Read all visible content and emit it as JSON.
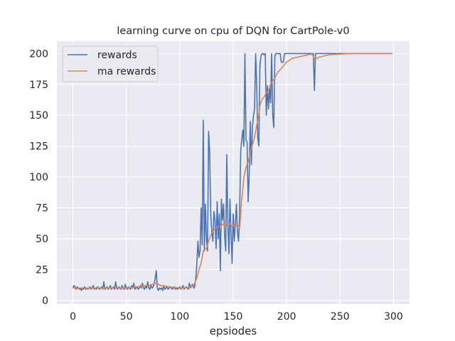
{
  "chart_data": {
    "type": "line",
    "title": "learning curve on cpu of DQN for CartPole-v0",
    "xlabel": "epsiodes",
    "ylabel": "",
    "xlim": [
      -15,
      315
    ],
    "ylim": [
      -3,
      210
    ],
    "xticks": [
      0,
      50,
      100,
      150,
      200,
      250,
      300
    ],
    "yticks": [
      0,
      25,
      50,
      75,
      100,
      125,
      150,
      175,
      200
    ],
    "grid": true,
    "legend": "top-left",
    "background": "#eaeaf2",
    "series": [
      {
        "name": "rewards",
        "color": "#4c72b0",
        "points": [
          [
            0,
            10
          ],
          [
            1,
            12
          ],
          [
            2,
            11
          ],
          [
            3,
            9
          ],
          [
            4,
            11
          ],
          [
            5,
            10
          ],
          [
            6,
            9
          ],
          [
            7,
            10
          ],
          [
            8,
            8
          ],
          [
            9,
            10
          ],
          [
            10,
            9
          ],
          [
            11,
            11
          ],
          [
            12,
            9
          ],
          [
            13,
            10
          ],
          [
            14,
            9
          ],
          [
            15,
            10
          ],
          [
            16,
            11
          ],
          [
            17,
            9
          ],
          [
            18,
            10
          ],
          [
            19,
            12
          ],
          [
            20,
            9
          ],
          [
            21,
            10
          ],
          [
            22,
            9
          ],
          [
            23,
            11
          ],
          [
            24,
            10
          ],
          [
            25,
            9
          ],
          [
            26,
            10
          ],
          [
            27,
            11
          ],
          [
            28,
            9
          ],
          [
            29,
            15
          ],
          [
            30,
            9
          ],
          [
            31,
            10
          ],
          [
            32,
            11
          ],
          [
            33,
            9
          ],
          [
            34,
            10
          ],
          [
            35,
            12
          ],
          [
            36,
            9
          ],
          [
            37,
            10
          ],
          [
            38,
            11
          ],
          [
            39,
            9
          ],
          [
            40,
            15
          ],
          [
            41,
            10
          ],
          [
            42,
            9
          ],
          [
            43,
            11
          ],
          [
            44,
            10
          ],
          [
            45,
            9
          ],
          [
            46,
            12
          ],
          [
            47,
            10
          ],
          [
            48,
            9
          ],
          [
            49,
            13
          ],
          [
            50,
            10
          ],
          [
            51,
            9
          ],
          [
            52,
            11
          ],
          [
            53,
            10
          ],
          [
            54,
            9
          ],
          [
            55,
            12
          ],
          [
            56,
            10
          ],
          [
            57,
            14
          ],
          [
            58,
            9
          ],
          [
            59,
            10
          ],
          [
            60,
            11
          ],
          [
            61,
            9
          ],
          [
            62,
            10
          ],
          [
            63,
            12
          ],
          [
            64,
            10
          ],
          [
            65,
            14
          ],
          [
            66,
            10
          ],
          [
            67,
            9
          ],
          [
            68,
            12
          ],
          [
            69,
            10
          ],
          [
            70,
            15
          ],
          [
            71,
            10
          ],
          [
            72,
            9
          ],
          [
            73,
            12
          ],
          [
            74,
            10
          ],
          [
            75,
            11
          ],
          [
            76,
            13
          ],
          [
            77,
            18
          ],
          [
            78,
            24
          ],
          [
            79,
            10
          ],
          [
            80,
            8
          ],
          [
            81,
            10
          ],
          [
            82,
            9
          ],
          [
            83,
            10
          ],
          [
            84,
            8
          ],
          [
            85,
            12
          ],
          [
            86,
            9
          ],
          [
            87,
            10
          ],
          [
            88,
            11
          ],
          [
            89,
            9
          ],
          [
            90,
            10
          ],
          [
            91,
            11
          ],
          [
            92,
            10
          ],
          [
            93,
            9
          ],
          [
            94,
            10
          ],
          [
            95,
            11
          ],
          [
            96,
            9
          ],
          [
            97,
            10
          ],
          [
            98,
            9
          ],
          [
            99,
            10
          ],
          [
            100,
            11
          ],
          [
            101,
            9
          ],
          [
            102,
            10
          ],
          [
            103,
            12
          ],
          [
            104,
            9
          ],
          [
            105,
            10
          ],
          [
            106,
            11
          ],
          [
            107,
            10
          ],
          [
            108,
            9
          ],
          [
            109,
            14
          ],
          [
            110,
            10
          ],
          [
            111,
            12
          ],
          [
            112,
            13
          ],
          [
            113,
            10
          ],
          [
            114,
            11
          ],
          [
            115,
            18
          ],
          [
            116,
            30
          ],
          [
            117,
            48
          ],
          [
            118,
            35
          ],
          [
            119,
            40
          ],
          [
            120,
            75
          ],
          [
            121,
            45
          ],
          [
            122,
            146
          ],
          [
            123,
            40
          ],
          [
            124,
            78
          ],
          [
            125,
            50
          ],
          [
            126,
            40
          ],
          [
            127,
            137
          ],
          [
            128,
            120
          ],
          [
            129,
            70
          ],
          [
            130,
            55
          ],
          [
            131,
            48
          ],
          [
            132,
            72
          ],
          [
            133,
            65
          ],
          [
            134,
            42
          ],
          [
            135,
            80
          ],
          [
            136,
            50
          ],
          [
            137,
            70
          ],
          [
            138,
            24
          ],
          [
            139,
            82
          ],
          [
            140,
            65
          ],
          [
            141,
            78
          ],
          [
            142,
            52
          ],
          [
            143,
            40
          ],
          [
            144,
            118
          ],
          [
            145,
            62
          ],
          [
            146,
            38
          ],
          [
            147,
            82
          ],
          [
            148,
            52
          ],
          [
            149,
            30
          ],
          [
            150,
            70
          ],
          [
            151,
            48
          ],
          [
            152,
            62
          ],
          [
            153,
            78
          ],
          [
            154,
            55
          ],
          [
            155,
            48
          ],
          [
            156,
            68
          ],
          [
            157,
            120
          ],
          [
            158,
            130
          ],
          [
            159,
            138
          ],
          [
            160,
            125
          ],
          [
            161,
            200
          ],
          [
            162,
            130
          ],
          [
            163,
            128
          ],
          [
            164,
            80
          ],
          [
            165,
            102
          ],
          [
            166,
            145
          ],
          [
            167,
            110
          ],
          [
            168,
            140
          ],
          [
            169,
            150
          ],
          [
            170,
            155
          ],
          [
            171,
            200
          ],
          [
            172,
            175
          ],
          [
            173,
            132
          ],
          [
            174,
            125
          ],
          [
            175,
            190
          ],
          [
            176,
            198
          ],
          [
            177,
            200
          ],
          [
            178,
            200
          ],
          [
            179,
            199
          ],
          [
            180,
            200
          ],
          [
            181,
            150
          ],
          [
            182,
            174
          ],
          [
            183,
            155
          ],
          [
            184,
            172
          ],
          [
            185,
            160
          ],
          [
            186,
            200
          ],
          [
            187,
            150
          ],
          [
            188,
            140
          ],
          [
            189,
            198
          ],
          [
            190,
            200
          ],
          [
            191,
            200
          ],
          [
            192,
            200
          ],
          [
            193,
            200
          ],
          [
            194,
            200
          ],
          [
            195,
            193
          ],
          [
            196,
            193
          ],
          [
            197,
            193
          ],
          [
            198,
            200
          ],
          [
            199,
            200
          ],
          [
            200,
            200
          ],
          [
            201,
            200
          ],
          [
            202,
            200
          ],
          [
            203,
            200
          ],
          [
            204,
            200
          ],
          [
            205,
            200
          ],
          [
            206,
            200
          ],
          [
            207,
            200
          ],
          [
            208,
            200
          ],
          [
            209,
            200
          ],
          [
            210,
            200
          ],
          [
            211,
            200
          ],
          [
            212,
            200
          ],
          [
            213,
            200
          ],
          [
            214,
            200
          ],
          [
            215,
            200
          ],
          [
            216,
            200
          ],
          [
            217,
            200
          ],
          [
            218,
            200
          ],
          [
            219,
            200
          ],
          [
            220,
            200
          ],
          [
            221,
            200
          ],
          [
            222,
            200
          ],
          [
            223,
            200
          ],
          [
            224,
            200
          ],
          [
            225,
            200
          ],
          [
            226,
            170
          ],
          [
            227,
            200
          ],
          [
            228,
            200
          ],
          [
            229,
            200
          ],
          [
            230,
            200
          ],
          [
            240,
            200
          ],
          [
            250,
            200
          ],
          [
            260,
            200
          ],
          [
            270,
            200
          ],
          [
            280,
            200
          ],
          [
            290,
            200
          ],
          [
            299,
            200
          ]
        ]
      },
      {
        "name": "ma rewards",
        "color": "#dd8452",
        "points": [
          [
            0,
            10
          ],
          [
            10,
            10
          ],
          [
            20,
            10
          ],
          [
            30,
            10
          ],
          [
            40,
            10
          ],
          [
            50,
            10
          ],
          [
            55,
            10.5
          ],
          [
            60,
            11
          ],
          [
            65,
            11.5
          ],
          [
            70,
            12
          ],
          [
            75,
            13
          ],
          [
            78,
            14
          ],
          [
            82,
            12
          ],
          [
            90,
            11
          ],
          [
            95,
            10.5
          ],
          [
            100,
            10
          ],
          [
            105,
            10
          ],
          [
            110,
            11
          ],
          [
            113,
            12
          ],
          [
            116,
            18
          ],
          [
            118,
            25
          ],
          [
            120,
            30
          ],
          [
            122,
            40
          ],
          [
            125,
            42
          ],
          [
            127,
            48
          ],
          [
            130,
            55
          ],
          [
            133,
            58
          ],
          [
            136,
            60
          ],
          [
            138,
            59
          ],
          [
            140,
            62
          ],
          [
            143,
            60
          ],
          [
            146,
            63
          ],
          [
            149,
            60
          ],
          [
            152,
            62
          ],
          [
            155,
            60
          ],
          [
            156,
            58
          ],
          [
            157,
            70
          ],
          [
            158,
            82
          ],
          [
            159,
            90
          ],
          [
            160,
            100
          ],
          [
            162,
            108
          ],
          [
            164,
            112
          ],
          [
            166,
            120
          ],
          [
            168,
            126
          ],
          [
            170,
            132
          ],
          [
            172,
            142
          ],
          [
            174,
            150
          ],
          [
            175,
            158
          ],
          [
            177,
            163
          ],
          [
            179,
            165
          ],
          [
            181,
            168
          ],
          [
            183,
            170
          ],
          [
            185,
            175
          ],
          [
            187,
            178
          ],
          [
            189,
            180
          ],
          [
            191,
            184
          ],
          [
            193,
            186
          ],
          [
            195,
            188
          ],
          [
            197,
            190
          ],
          [
            200,
            193
          ],
          [
            205,
            196
          ],
          [
            210,
            197
          ],
          [
            215,
            198
          ],
          [
            220,
            199
          ],
          [
            224,
            199.5
          ],
          [
            226,
            195
          ],
          [
            228,
            196
          ],
          [
            230,
            197
          ],
          [
            235,
            198
          ],
          [
            240,
            199
          ],
          [
            250,
            199.5
          ],
          [
            260,
            200
          ],
          [
            280,
            200
          ],
          [
            299,
            200
          ]
        ]
      }
    ]
  }
}
